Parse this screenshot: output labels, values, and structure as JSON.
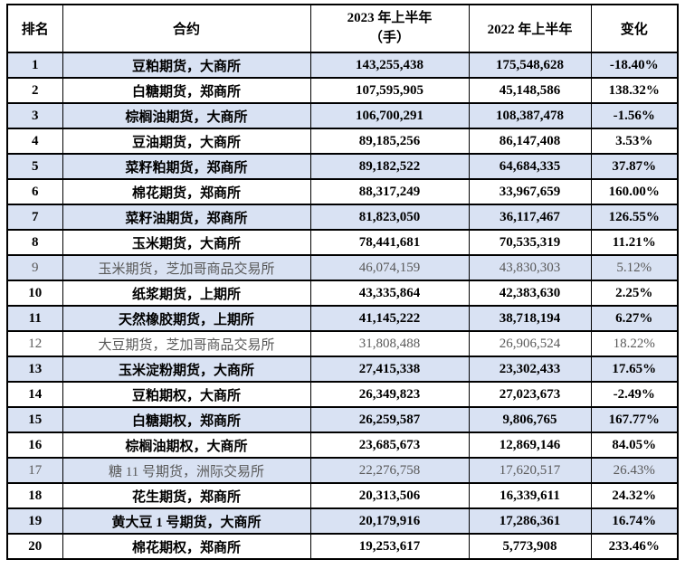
{
  "colors": {
    "shaded_row_bg": "#D9E2F3",
    "muted_text": "#595959",
    "border_color": "#000000",
    "text_color": "#000000",
    "page_bg": "#FFFFFF"
  },
  "table": {
    "columns": [
      {
        "key": "rank",
        "label": "排名"
      },
      {
        "key": "contract",
        "label": "合约"
      },
      {
        "key": "h1_2023",
        "label": "2023 年上半年",
        "label_line2": "（手）"
      },
      {
        "key": "h1_2022",
        "label": "2022 年上半年"
      },
      {
        "key": "change",
        "label": "变化"
      }
    ],
    "rows": [
      {
        "rank": "1",
        "contract": "豆粕期货，大商所",
        "h1_2023": "143,255,438",
        "h1_2022": "175,548,628",
        "change": "-18.40%",
        "shaded": true,
        "muted": false
      },
      {
        "rank": "2",
        "contract": "白糖期货，郑商所",
        "h1_2023": "107,595,905",
        "h1_2022": "45,148,586",
        "change": "138.32%",
        "shaded": false,
        "muted": false
      },
      {
        "rank": "3",
        "contract": "棕榈油期货，大商所",
        "h1_2023": "106,700,291",
        "h1_2022": "108,387,478",
        "change": "-1.56%",
        "shaded": true,
        "muted": false
      },
      {
        "rank": "4",
        "contract": "豆油期货，大商所",
        "h1_2023": "89,185,256",
        "h1_2022": "86,147,408",
        "change": "3.53%",
        "shaded": false,
        "muted": false
      },
      {
        "rank": "5",
        "contract": "菜籽粕期货，郑商所",
        "h1_2023": "89,182,522",
        "h1_2022": "64,684,335",
        "change": "37.87%",
        "shaded": true,
        "muted": false
      },
      {
        "rank": "6",
        "contract": "棉花期货，郑商所",
        "h1_2023": "88,317,249",
        "h1_2022": "33,967,659",
        "change": "160.00%",
        "shaded": false,
        "muted": false
      },
      {
        "rank": "7",
        "contract": "菜籽油期货，郑商所",
        "h1_2023": "81,823,050",
        "h1_2022": "36,117,467",
        "change": "126.55%",
        "shaded": true,
        "muted": false
      },
      {
        "rank": "8",
        "contract": "玉米期货，大商所",
        "h1_2023": "78,441,681",
        "h1_2022": "70,535,319",
        "change": "11.21%",
        "shaded": false,
        "muted": false
      },
      {
        "rank": "9",
        "contract": "玉米期货，芝加哥商品交易所",
        "h1_2023": "46,074,159",
        "h1_2022": "43,830,303",
        "change": "5.12%",
        "shaded": true,
        "muted": true
      },
      {
        "rank": "10",
        "contract": "纸浆期货，上期所",
        "h1_2023": "43,335,864",
        "h1_2022": "42,383,630",
        "change": "2.25%",
        "shaded": false,
        "muted": false
      },
      {
        "rank": "11",
        "contract": "天然橡胶期货，上期所",
        "h1_2023": "41,145,222",
        "h1_2022": "38,718,194",
        "change": "6.27%",
        "shaded": true,
        "muted": false
      },
      {
        "rank": "12",
        "contract": "大豆期货，芝加哥商品交易所",
        "h1_2023": "31,808,488",
        "h1_2022": "26,906,524",
        "change": "18.22%",
        "shaded": false,
        "muted": true
      },
      {
        "rank": "13",
        "contract": "玉米淀粉期货，大商所",
        "h1_2023": "27,415,338",
        "h1_2022": "23,302,433",
        "change": "17.65%",
        "shaded": true,
        "muted": false
      },
      {
        "rank": "14",
        "contract": "豆粕期权，大商所",
        "h1_2023": "26,349,823",
        "h1_2022": "27,023,673",
        "change": "-2.49%",
        "shaded": false,
        "muted": false
      },
      {
        "rank": "15",
        "contract": "白糖期权，郑商所",
        "h1_2023": "26,259,587",
        "h1_2022": "9,806,765",
        "change": "167.77%",
        "shaded": true,
        "muted": false
      },
      {
        "rank": "16",
        "contract": "棕榈油期权，大商所",
        "h1_2023": "23,685,673",
        "h1_2022": "12,869,146",
        "change": "84.05%",
        "shaded": false,
        "muted": false
      },
      {
        "rank": "17",
        "contract": "糖 11 号期货，洲际交易所",
        "h1_2023": "22,276,758",
        "h1_2022": "17,620,517",
        "change": "26.43%",
        "shaded": true,
        "muted": true
      },
      {
        "rank": "18",
        "contract": "花生期货，郑商所",
        "h1_2023": "20,313,506",
        "h1_2022": "16,339,611",
        "change": "24.32%",
        "shaded": false,
        "muted": false
      },
      {
        "rank": "19",
        "contract": "黄大豆 1 号期货，大商所",
        "h1_2023": "20,179,916",
        "h1_2022": "17,286,361",
        "change": "16.74%",
        "shaded": true,
        "muted": false
      },
      {
        "rank": "20",
        "contract": "棉花期权，郑商所",
        "h1_2023": "19,253,617",
        "h1_2022": "5,773,908",
        "change": "233.46%",
        "shaded": false,
        "muted": false
      }
    ]
  }
}
